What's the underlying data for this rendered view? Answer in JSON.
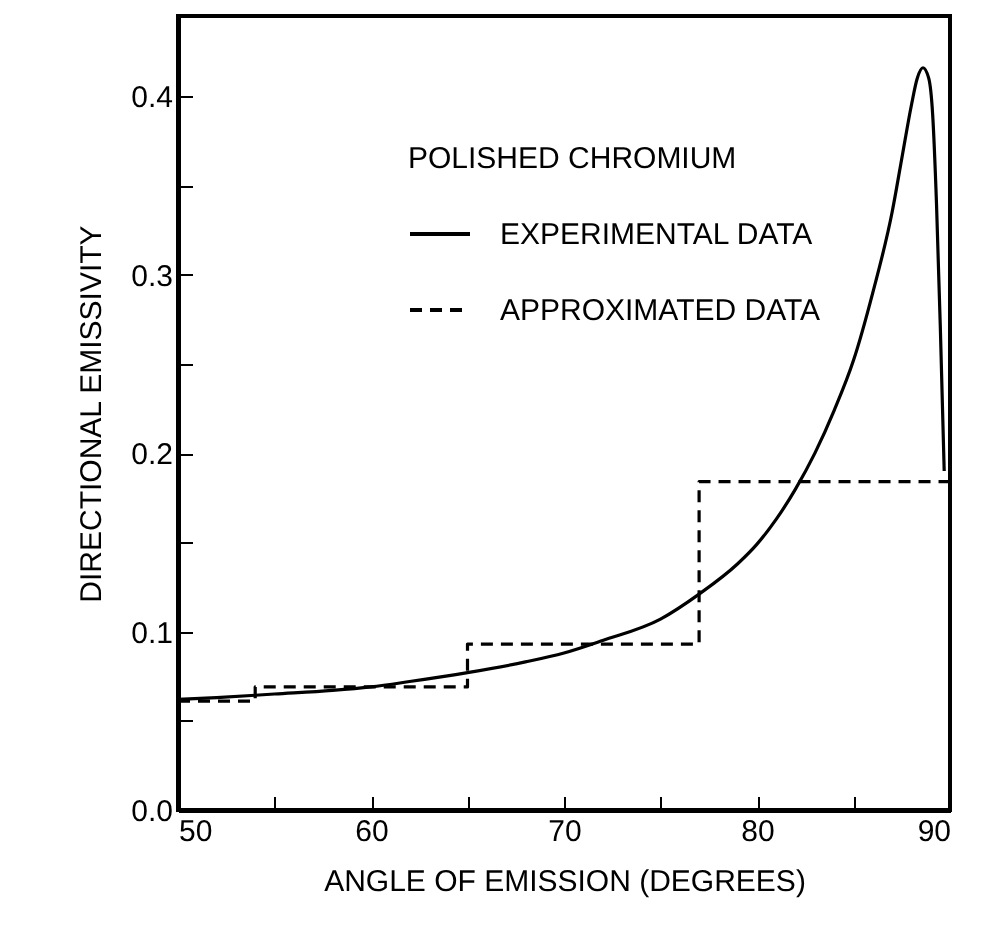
{
  "chart_data": {
    "type": "line",
    "xlabel": "ANGLE OF EMISSION (DEGREES)",
    "ylabel": "DIRECTIONAL EMISSIVITY",
    "legend_title": "POLISHED CHROMIUM",
    "legend": "top right",
    "grid": false,
    "xlim": [
      50,
      90
    ],
    "ylim": [
      0,
      0.445
    ],
    "xticks": [
      50,
      {
        "value": 55,
        "label": null
      },
      60,
      {
        "value": 65,
        "label": null
      },
      70,
      {
        "value": 75,
        "label": null
      },
      80,
      {
        "value": 85,
        "label": null
      },
      90
    ],
    "yticks": [
      {
        "value": 0,
        "label": "0.0"
      },
      {
        "value": 0.05,
        "label": null
      },
      0.1,
      {
        "value": 0.15,
        "label": null
      },
      0.2,
      {
        "value": 0.25,
        "label": null
      },
      0.3,
      {
        "value": 0.35,
        "label": null
      },
      0.4
    ],
    "series": [
      {
        "name": "EXPERIMENTAL DATA",
        "type": "line",
        "line_style": "solid",
        "color": "#000000",
        "x": [
          50,
          52,
          55,
          58,
          60,
          62,
          65,
          68,
          70,
          72,
          75,
          77,
          79,
          80,
          81,
          82,
          83,
          84,
          85,
          86,
          87,
          87.5,
          88,
          88.3,
          88.6,
          88.9,
          89.1,
          89.3,
          89.5,
          89.7
        ],
        "values": [
          0.062,
          0.063,
          0.065,
          0.067,
          0.069,
          0.072,
          0.077,
          0.083,
          0.088,
          0.095,
          0.107,
          0.121,
          0.138,
          0.149,
          0.163,
          0.18,
          0.2,
          0.224,
          0.252,
          0.29,
          0.335,
          0.365,
          0.395,
          0.41,
          0.416,
          0.41,
          0.39,
          0.34,
          0.27,
          0.19
        ]
      },
      {
        "name": "APPROXIMATED DATA",
        "type": "step",
        "line_style": "dashed",
        "color": "#000000",
        "x": [
          50,
          54,
          65,
          77,
          90
        ],
        "values": [
          0.061,
          0.069,
          0.093,
          0.184,
          0.184
        ]
      }
    ]
  }
}
